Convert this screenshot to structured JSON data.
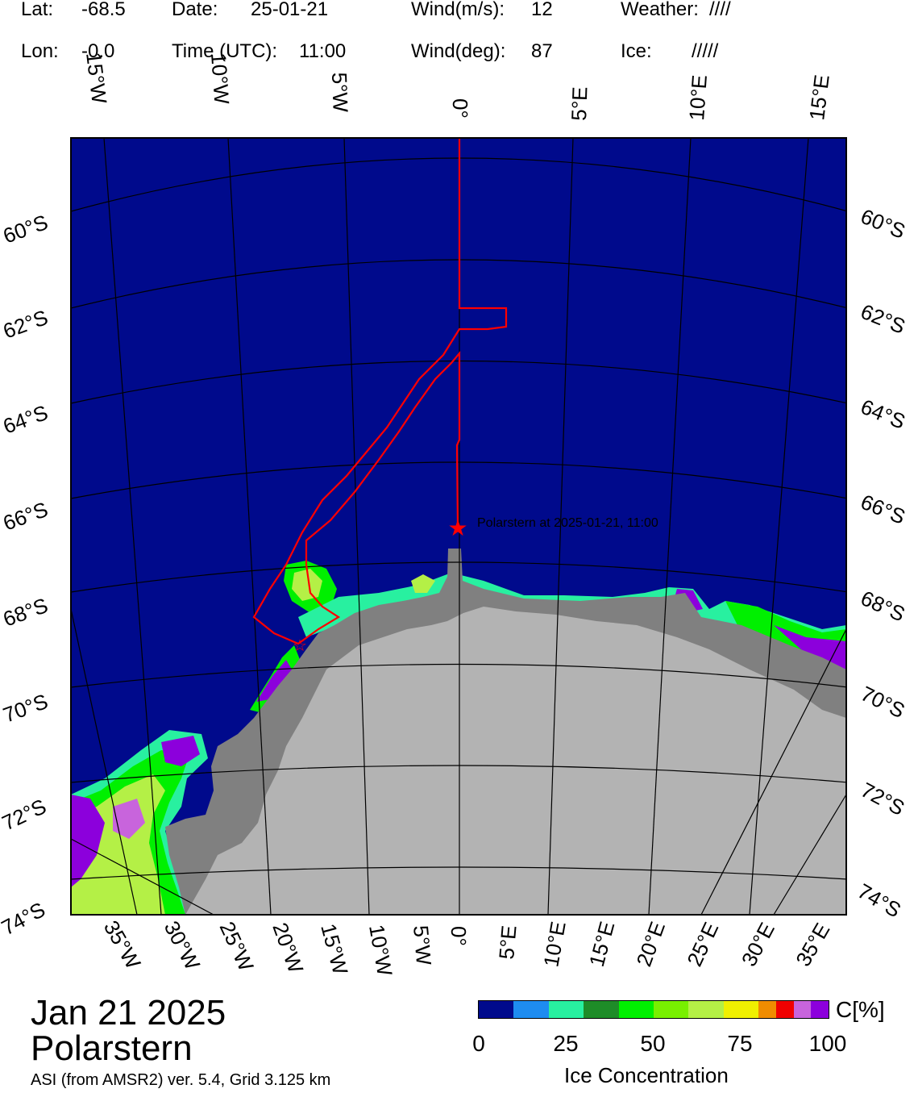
{
  "header": {
    "lat_label": "Lat:",
    "lat_value": "-68.5",
    "lon_label": "Lon:",
    "lon_value": "-0.0",
    "date_label": "Date:",
    "date_value": "25-01-21",
    "time_label": "Time (UTC):",
    "time_value": "11:00",
    "wind_speed_label": "Wind(m/s):",
    "wind_speed_value": "12",
    "wind_dir_label": "Wind(deg):",
    "wind_dir_value": "87",
    "weather_label": "Weather:",
    "weather_value": "////",
    "ice_label": "Ice:",
    "ice_value": "/////"
  },
  "map": {
    "top_lon_labels": [
      "15°W",
      "10°W",
      "5°W",
      "0°",
      "5°E",
      "10°E",
      "15°E"
    ],
    "bottom_lon_labels": [
      "35°W",
      "30°W",
      "25°W",
      "20°W",
      "15°W",
      "10°W",
      "5°W",
      "0°",
      "5°E",
      "10°E",
      "15°E",
      "20°E",
      "25°E",
      "30°E",
      "35°E"
    ],
    "lat_labels": [
      "60°S",
      "62°S",
      "64°S",
      "66°S",
      "68°S",
      "70°S",
      "72°S",
      "74°S"
    ],
    "ship_annotation": "Polarstern at 2025-01-21, 11:00",
    "colors": {
      "ocean": "#000a8c",
      "ice_shelf": "#b3b3b3",
      "land": "#808080",
      "track": "#ff0000",
      "graticule": "#000000"
    }
  },
  "footer": {
    "date_title": "Jan 21 2025",
    "ship_title": "Polarstern",
    "source_note": "ASI (from AMSR2) ver. 5.4,  Grid 3.125 km"
  },
  "colorbar": {
    "unit_label": "C[%]",
    "title": "Ice Concentration",
    "ticks": [
      "0",
      "25",
      "50",
      "75",
      "100"
    ],
    "colors": [
      "#000a8c",
      "#1e8cf0",
      "#28f0a0",
      "#1e8c28",
      "#00f000",
      "#78f000",
      "#b4f046",
      "#f0f000",
      "#f08c00",
      "#f00000",
      "#c864dc",
      "#8c00dc"
    ]
  }
}
